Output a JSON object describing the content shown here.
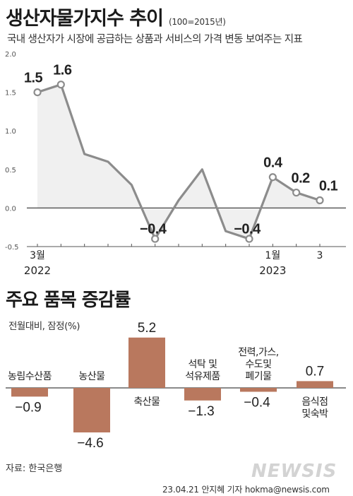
{
  "header": {
    "title": "생산자물가지수 추이",
    "unit": "(100=2015년)",
    "subtitle": "국내 생산자가 시장에 공급하는 상품과 서비스의 가격 변동 보여주는 지표"
  },
  "section2": {
    "title": "주요 품목 증감률",
    "unit": "전월대비, 잠정(%)"
  },
  "source": "자료: 한국은행",
  "footer": "23.04.21 안지혜 기자 hokma@newsis.com",
  "logo_text": "NEWSIS",
  "colors": {
    "line": "#8c8c8c",
    "area": "#f0f0f0",
    "bar": "#b9785e",
    "axis": "#555555"
  },
  "chart_data": [
    {
      "type": "line",
      "x": [
        "2022-03",
        "2022-04",
        "2022-05",
        "2022-06",
        "2022-07",
        "2022-08",
        "2022-09",
        "2022-10",
        "2022-11",
        "2022-12",
        "2023-01",
        "2023-02",
        "2023-03"
      ],
      "values": [
        1.5,
        1.6,
        0.7,
        0.6,
        0.3,
        -0.4,
        0.1,
        0.5,
        -0.3,
        -0.4,
        0.4,
        0.2,
        0.1
      ],
      "highlighted": [
        0,
        1,
        5,
        9,
        10,
        11,
        12
      ],
      "data_labels": {
        "0": "1.5",
        "1": "1.6",
        "5": "-0.4",
        "9": "-0.4",
        "10": "0.4",
        "11": "0.2",
        "12": "0.1"
      },
      "x_tick_labels": [
        {
          "index": 0,
          "label": "3월",
          "year": "2022"
        },
        {
          "index": 10,
          "label": "1월",
          "year": "2023"
        },
        {
          "index": 12,
          "label": "3",
          "year": ""
        }
      ],
      "y_ticks": [
        "2.0",
        "1.5",
        "1.0",
        "0.5",
        "0.0",
        "-0.5"
      ],
      "ylim": [
        -0.5,
        2.0
      ],
      "grid": false,
      "fill": "area-to-zero"
    },
    {
      "type": "bar",
      "categories": [
        [
          "농림수산품"
        ],
        [
          "농산물"
        ],
        [
          "축산물"
        ],
        [
          "석탁 및",
          "석유제품"
        ],
        [
          "전력,가스,",
          "수도및",
          "폐기물"
        ],
        [
          "음식점",
          "및숙박"
        ]
      ],
      "values": [
        -0.9,
        -4.6,
        5.2,
        -1.3,
        -0.4,
        0.7
      ],
      "value_labels": [
        "-0.9",
        "-4.6",
        "5.2",
        "-1.3",
        "-0.4",
        "0.7"
      ]
    }
  ]
}
